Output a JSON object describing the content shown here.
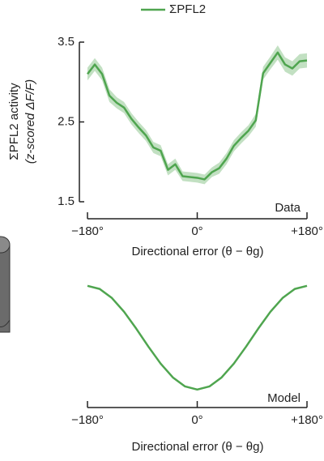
{
  "chart_data": [
    {
      "type": "line",
      "series": [
        {
          "name": "ΣPFL2",
          "color": "#4fa54f",
          "values": [
            3.1,
            3.22,
            3.1,
            2.83,
            2.74,
            2.68,
            2.54,
            2.43,
            2.33,
            2.18,
            2.14,
            1.9,
            1.97,
            1.82,
            1.81,
            1.8,
            1.78,
            1.87,
            1.92,
            2.04,
            2.2,
            2.3,
            2.39,
            2.52,
            3.11,
            3.24,
            3.37,
            3.22,
            3.17,
            3.26,
            3.27
          ],
          "error": [
            0.08,
            0.08,
            0.08,
            0.08,
            0.07,
            0.07,
            0.07,
            0.07,
            0.07,
            0.07,
            0.07,
            0.07,
            0.07,
            0.06,
            0.06,
            0.06,
            0.06,
            0.06,
            0.07,
            0.07,
            0.07,
            0.07,
            0.07,
            0.08,
            0.08,
            0.08,
            0.09,
            0.09,
            0.09,
            0.09,
            0.09
          ]
        }
      ],
      "x": [
        -180,
        -168,
        -156,
        -144,
        -132,
        -120,
        -108,
        -96,
        -84,
        -72,
        -60,
        -48,
        -36,
        -24,
        -12,
        0,
        12,
        24,
        36,
        48,
        60,
        72,
        84,
        96,
        108,
        120,
        132,
        144,
        156,
        168,
        180
      ],
      "xlim": [
        -180,
        180
      ],
      "xticks": [
        {
          "value": -180,
          "label": "−180°"
        },
        {
          "value": 0,
          "label": "0°"
        },
        {
          "value": 180,
          "label": "+180°"
        }
      ],
      "ylim": [
        1.5,
        3.5
      ],
      "yticks": [
        1.5,
        2.5,
        3.5
      ],
      "y_label": [
        "ΣPFL2 activity",
        "(z-scored ΔF/F)"
      ],
      "x_label": "Directional error (θ − θg)",
      "annotation": "Data",
      "legend": "top"
    },
    {
      "type": "line",
      "color": "#4fa54f",
      "x": [
        -180,
        -160,
        -140,
        -120,
        -100,
        -80,
        -60,
        -40,
        -20,
        0,
        20,
        40,
        60,
        80,
        100,
        120,
        140,
        160,
        180
      ],
      "values": [
        1,
        0.97,
        0.883,
        0.75,
        0.587,
        0.413,
        0.25,
        0.117,
        0.03,
        0,
        0.03,
        0.117,
        0.25,
        0.413,
        0.587,
        0.75,
        0.883,
        0.97,
        1
      ],
      "xlim": [
        -180,
        180
      ],
      "xticks": [
        {
          "value": -180,
          "label": "−180°"
        },
        {
          "value": 0,
          "label": "0°"
        },
        {
          "value": 180,
          "label": "+180°"
        }
      ],
      "ylim": [
        -0.15,
        1.1
      ],
      "x_label": "Directional error (θ − θg)",
      "annotation": "Model"
    }
  ]
}
